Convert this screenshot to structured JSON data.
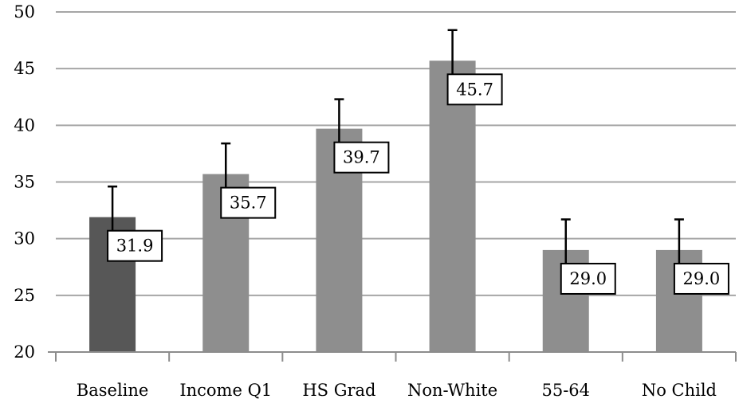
{
  "chart_data": {
    "type": "bar",
    "title": "",
    "xlabel": "",
    "ylabel": "",
    "ylim": [
      20,
      50
    ],
    "yticks": [
      20,
      25,
      30,
      35,
      40,
      45,
      50
    ],
    "grid": true,
    "categories": [
      "Baseline",
      "Income Q1",
      "HS Grad",
      "Non-White",
      "55-64",
      "No Child"
    ],
    "values": [
      31.9,
      35.7,
      39.7,
      45.7,
      29.0,
      29.0
    ],
    "data_labels": [
      "31.9",
      "35.7",
      "39.7",
      "45.7",
      "29.0",
      "29.0"
    ],
    "error_low": [
      29.2,
      33.0,
      37.0,
      43.0,
      26.3,
      26.3
    ],
    "error_high": [
      34.6,
      38.4,
      42.3,
      48.4,
      31.7,
      31.7
    ],
    "bar_colors": [
      "#575757",
      "#8e8e8e",
      "#8e8e8e",
      "#8e8e8e",
      "#8e8e8e",
      "#8e8e8e"
    ]
  }
}
